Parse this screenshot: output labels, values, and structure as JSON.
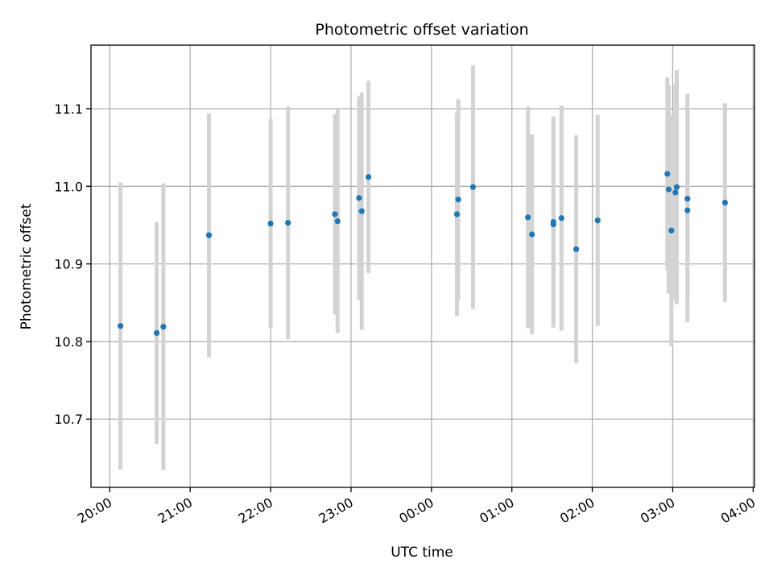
{
  "chart_data": {
    "type": "scatter",
    "title": "Photometric offset variation",
    "xlabel": "UTC time",
    "ylabel": "Photometric offset",
    "grid": true,
    "x_tick_labels": [
      "20:00",
      "21:00",
      "22:00",
      "23:00",
      "00:00",
      "01:00",
      "02:00",
      "03:00",
      "04:00"
    ],
    "y_tick_labels": [
      "10.7",
      "10.8",
      "10.9",
      "11.0",
      "11.1"
    ],
    "y_ticks": [
      10.7,
      10.8,
      10.9,
      11.0,
      11.1
    ],
    "xlim": [
      "19:46",
      "04:01"
    ],
    "ylim": [
      10.612,
      11.182
    ],
    "colors": {
      "point": "#1f77b4",
      "errorbar": "#d3d3d3",
      "grid": "#b0b0b0"
    },
    "series": [
      {
        "points": [
          {
            "x": "20:08",
            "y": 10.82,
            "err": 0.185
          },
          {
            "x": "20:35",
            "y": 10.811,
            "err": 0.143
          },
          {
            "x": "20:40",
            "y": 10.819,
            "err": 0.185
          },
          {
            "x": "21:14",
            "y": 10.937,
            "err": 0.157
          },
          {
            "x": "22:00",
            "y": 10.952,
            "err": 0.135
          },
          {
            "x": "22:13",
            "y": 10.953,
            "err": 0.15
          },
          {
            "x": "22:48",
            "y": 10.964,
            "err": 0.129
          },
          {
            "x": "22:50",
            "y": 10.955,
            "err": 0.144
          },
          {
            "x": "23:06",
            "y": 10.985,
            "err": 0.131
          },
          {
            "x": "23:08",
            "y": 10.968,
            "err": 0.153
          },
          {
            "x": "23:13",
            "y": 11.012,
            "err": 0.124
          },
          {
            "x": "00:19",
            "y": 10.964,
            "err": 0.131
          },
          {
            "x": "00:20",
            "y": 10.983,
            "err": 0.129
          },
          {
            "x": "00:31",
            "y": 10.999,
            "err": 0.157
          },
          {
            "x": "01:12",
            "y": 10.96,
            "err": 0.143
          },
          {
            "x": "01:15",
            "y": 10.938,
            "err": 0.129
          },
          {
            "x": "01:31",
            "y": 10.954,
            "err": 0.136
          },
          {
            "x": "01:31",
            "y": 10.951,
            "err": 0.13
          },
          {
            "x": "01:37",
            "y": 10.959,
            "err": 0.145
          },
          {
            "x": "01:48",
            "y": 10.919,
            "err": 0.147
          },
          {
            "x": "02:04",
            "y": 10.956,
            "err": 0.136
          },
          {
            "x": "02:56",
            "y": 11.016,
            "err": 0.124
          },
          {
            "x": "02:57",
            "y": 10.996,
            "err": 0.134
          },
          {
            "x": "02:59",
            "y": 10.943,
            "err": 0.149
          },
          {
            "x": "03:02",
            "y": 10.992,
            "err": 0.139
          },
          {
            "x": "03:03",
            "y": 10.999,
            "err": 0.151
          },
          {
            "x": "03:11",
            "y": 10.984,
            "err": 0.135
          },
          {
            "x": "03:11",
            "y": 10.969,
            "err": 0.144
          },
          {
            "x": "03:39",
            "y": 10.979,
            "err": 0.128
          }
        ]
      }
    ]
  }
}
